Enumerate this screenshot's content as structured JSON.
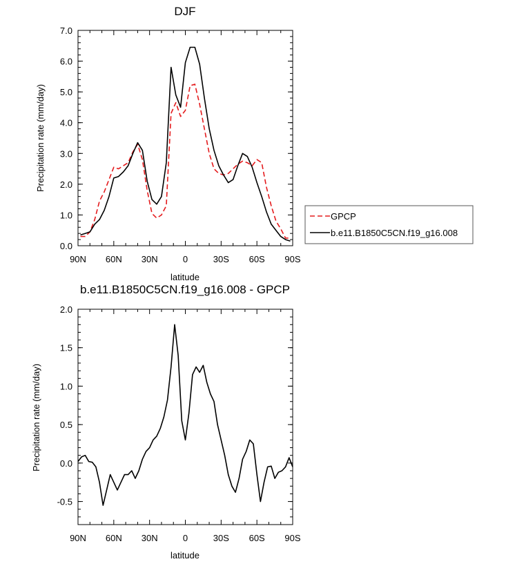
{
  "chart_data": [
    {
      "type": "line",
      "title": "DJF",
      "xlabel": "latitude",
      "ylabel": "Precipitation rate (mm/day)",
      "xlim": [
        90,
        -90
      ],
      "ylim": [
        0,
        7
      ],
      "xtick_labels": [
        "90N",
        "60N",
        "30N",
        "0",
        "30S",
        "60S",
        "90S"
      ],
      "ytick_labels": [
        "0.0",
        "1.0",
        "2.0",
        "3.0",
        "4.0",
        "5.0",
        "6.0",
        "7.0"
      ],
      "grid": false,
      "legend": "right",
      "series": [
        {
          "name": "GPCP",
          "color": "#e41a1c",
          "style": "dashed",
          "x": [
            88,
            84,
            80,
            76,
            72,
            68,
            64,
            60,
            56,
            52,
            48,
            44,
            40,
            36,
            32,
            28,
            24,
            20,
            16,
            12,
            8,
            4,
            0,
            -4,
            -8,
            -12,
            -16,
            -20,
            -24,
            -28,
            -32,
            -36,
            -40,
            -44,
            -48,
            -52,
            -56,
            -60,
            -64,
            -68,
            -72,
            -76,
            -80,
            -84,
            -88
          ],
          "y": [
            0.3,
            0.3,
            0.45,
            0.85,
            1.45,
            1.75,
            2.15,
            2.55,
            2.5,
            2.6,
            2.7,
            3.05,
            3.3,
            2.8,
            1.8,
            1.05,
            0.9,
            1.0,
            1.3,
            4.3,
            4.65,
            4.2,
            4.4,
            5.2,
            5.25,
            4.6,
            3.8,
            3.0,
            2.5,
            2.35,
            2.3,
            2.35,
            2.5,
            2.65,
            2.75,
            2.7,
            2.6,
            2.8,
            2.7,
            1.9,
            1.3,
            0.8,
            0.55,
            0.25,
            0.25
          ]
        },
        {
          "name": "b.e11.B1850C5CN.f19_g16.008",
          "color": "#000000",
          "style": "solid",
          "x": [
            88,
            84,
            80,
            76,
            72,
            68,
            64,
            60,
            56,
            52,
            48,
            44,
            40,
            36,
            32,
            28,
            24,
            20,
            16,
            12,
            8,
            4,
            0,
            -4,
            -8,
            -12,
            -16,
            -20,
            -24,
            -28,
            -32,
            -36,
            -40,
            -44,
            -48,
            -52,
            -56,
            -60,
            -64,
            -68,
            -72,
            -76,
            -80,
            -84,
            -88
          ],
          "y": [
            0.35,
            0.4,
            0.45,
            0.7,
            0.85,
            1.15,
            1.6,
            2.2,
            2.25,
            2.4,
            2.6,
            3.0,
            3.35,
            3.1,
            2.1,
            1.5,
            1.35,
            1.6,
            2.7,
            5.8,
            4.9,
            4.5,
            5.95,
            6.45,
            6.45,
            5.9,
            4.8,
            3.8,
            3.1,
            2.6,
            2.3,
            2.05,
            2.15,
            2.6,
            3.0,
            2.9,
            2.55,
            2.05,
            1.6,
            1.1,
            0.7,
            0.5,
            0.3,
            0.2,
            0.15
          ]
        }
      ]
    },
    {
      "type": "line",
      "title": "b.e11.B1850C5CN.f19_g16.008 - GPCP",
      "xlabel": "latitude",
      "ylabel": "Precipitation rate (mm/day)",
      "xlim": [
        90,
        -90
      ],
      "ylim": [
        -0.8,
        2.0
      ],
      "xtick_labels": [
        "90N",
        "60N",
        "30N",
        "0",
        "30S",
        "60S",
        "90S"
      ],
      "ytick_labels": [
        "-0.5",
        "0.0",
        "0.5",
        "1.0",
        "1.5",
        "2.0"
      ],
      "grid": false,
      "series": [
        {
          "color": "#000000",
          "style": "solid",
          "x": [
            90,
            87,
            84,
            81,
            78,
            75,
            72,
            69,
            66,
            63,
            60,
            57,
            54,
            51,
            48,
            45,
            42,
            39,
            36,
            33,
            30,
            27,
            24,
            21,
            18,
            15,
            12,
            9,
            6,
            3,
            0,
            -3,
            -6,
            -9,
            -12,
            -15,
            -18,
            -21,
            -24,
            -27,
            -30,
            -33,
            -36,
            -39,
            -42,
            -45,
            -48,
            -51,
            -54,
            -57,
            -60,
            -63,
            -66,
            -69,
            -72,
            -75,
            -78,
            -81,
            -84,
            -87,
            -90
          ],
          "y": [
            0.02,
            0.08,
            0.1,
            0.02,
            0.01,
            -0.05,
            -0.25,
            -0.55,
            -0.35,
            -0.15,
            -0.25,
            -0.35,
            -0.25,
            -0.15,
            -0.15,
            -0.1,
            -0.2,
            -0.1,
            0.05,
            0.15,
            0.2,
            0.3,
            0.35,
            0.45,
            0.6,
            0.82,
            1.25,
            1.8,
            1.4,
            0.55,
            0.3,
            0.65,
            1.15,
            1.25,
            1.18,
            1.27,
            1.05,
            0.9,
            0.8,
            0.5,
            0.3,
            0.1,
            -0.15,
            -0.3,
            -0.38,
            -0.2,
            0.05,
            0.15,
            0.3,
            0.25,
            -0.15,
            -0.5,
            -0.25,
            -0.05,
            -0.04,
            -0.2,
            -0.12,
            -0.1,
            -0.05,
            0.07,
            -0.05
          ]
        }
      ]
    }
  ]
}
